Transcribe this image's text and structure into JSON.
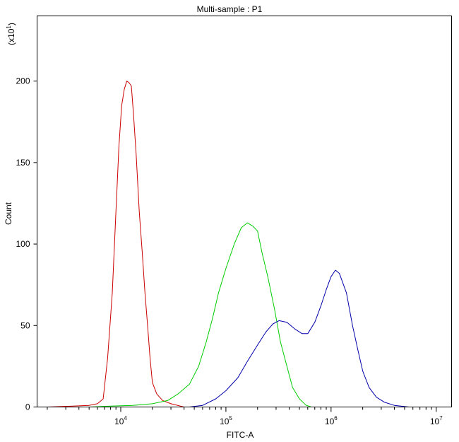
{
  "chart_data": {
    "type": "line",
    "title": "Multi-sample : P1",
    "xlabel": "FITC-A",
    "ylabel": "Count",
    "y_multiplier_prefix": "(x10",
    "y_multiplier_exp": "1",
    "y_multiplier_suffix": ")",
    "x_scale": "log",
    "xlim": [
      1600,
      14000000
    ],
    "ylim": [
      0,
      240
    ],
    "x_ticks": [
      {
        "value": 10000,
        "base": "10",
        "exp": "4"
      },
      {
        "value": 100000,
        "base": "10",
        "exp": "5"
      },
      {
        "value": 1000000,
        "base": "10",
        "exp": "6"
      },
      {
        "value": 10000000,
        "base": "10",
        "exp": "7"
      }
    ],
    "y_ticks": [
      {
        "value": 0,
        "label": "0"
      },
      {
        "value": 50,
        "label": "50"
      },
      {
        "value": 100,
        "label": "100"
      },
      {
        "value": 150,
        "label": "150"
      },
      {
        "value": 200,
        "label": "200"
      }
    ],
    "grid": false,
    "series": [
      {
        "color": "#cc0000",
        "points": [
          [
            2000,
            0
          ],
          [
            3500,
            0.5
          ],
          [
            5000,
            1
          ],
          [
            6000,
            2
          ],
          [
            6800,
            5
          ],
          [
            7500,
            30
          ],
          [
            8300,
            70
          ],
          [
            9000,
            120
          ],
          [
            9600,
            160
          ],
          [
            10200,
            185
          ],
          [
            10800,
            195
          ],
          [
            11400,
            200
          ],
          [
            12000,
            199
          ],
          [
            12600,
            197
          ],
          [
            13200,
            180
          ],
          [
            14000,
            155
          ],
          [
            15000,
            120
          ],
          [
            16000,
            95
          ],
          [
            17000,
            70
          ],
          [
            18000,
            50
          ],
          [
            19000,
            30
          ],
          [
            20000,
            15
          ],
          [
            22000,
            8
          ],
          [
            25000,
            4
          ],
          [
            30000,
            2
          ],
          [
            40000,
            0
          ]
        ]
      },
      {
        "color": "#00cc00",
        "points": [
          [
            5000,
            0
          ],
          [
            8000,
            0.5
          ],
          [
            13000,
            1
          ],
          [
            20000,
            2
          ],
          [
            28000,
            4
          ],
          [
            35000,
            8
          ],
          [
            45000,
            14
          ],
          [
            55000,
            25
          ],
          [
            65000,
            40
          ],
          [
            75000,
            55
          ],
          [
            85000,
            70
          ],
          [
            100000,
            85
          ],
          [
            120000,
            100
          ],
          [
            140000,
            110
          ],
          [
            160000,
            113
          ],
          [
            180000,
            111
          ],
          [
            200000,
            108
          ],
          [
            220000,
            95
          ],
          [
            250000,
            80
          ],
          [
            290000,
            60
          ],
          [
            330000,
            40
          ],
          [
            380000,
            25
          ],
          [
            430000,
            12
          ],
          [
            500000,
            5
          ],
          [
            580000,
            1
          ],
          [
            650000,
            0
          ]
        ]
      },
      {
        "color": "#0000aa",
        "points": [
          [
            45000,
            0
          ],
          [
            60000,
            1
          ],
          [
            80000,
            5
          ],
          [
            100000,
            10
          ],
          [
            130000,
            18
          ],
          [
            160000,
            28
          ],
          [
            200000,
            38
          ],
          [
            240000,
            46
          ],
          [
            280000,
            51
          ],
          [
            320000,
            53
          ],
          [
            380000,
            52
          ],
          [
            450000,
            48
          ],
          [
            530000,
            45
          ],
          [
            600000,
            45
          ],
          [
            700000,
            52
          ],
          [
            800000,
            62
          ],
          [
            900000,
            72
          ],
          [
            1000000,
            80
          ],
          [
            1100000,
            84
          ],
          [
            1200000,
            82
          ],
          [
            1400000,
            70
          ],
          [
            1600000,
            50
          ],
          [
            1800000,
            35
          ],
          [
            2000000,
            22
          ],
          [
            2300000,
            12
          ],
          [
            2700000,
            6
          ],
          [
            3200000,
            3
          ],
          [
            4000000,
            1
          ],
          [
            5500000,
            0
          ]
        ]
      }
    ]
  }
}
